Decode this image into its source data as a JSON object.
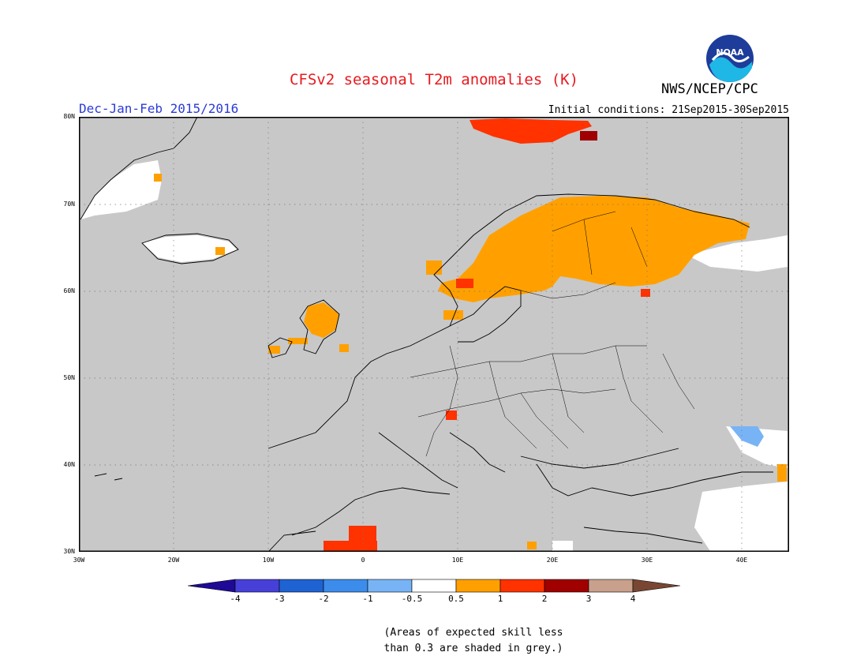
{
  "header": {
    "title": "CFSv2 seasonal T2m anomalies (K)",
    "agency": "NWS/NCEP/CPC",
    "period": "Dec-Jan-Feb 2015/2016",
    "initial_conditions": "Initial conditions: 21Sep2015-30Sep2015",
    "logo_text": "NOAA"
  },
  "map": {
    "lat_labels": [
      "80N",
      "70N",
      "60N",
      "50N",
      "40N",
      "30N"
    ],
    "lon_labels": [
      "30W",
      "20W",
      "10W",
      "0",
      "10E",
      "20E",
      "30E",
      "40E"
    ],
    "grey_color": "#c8c8c8"
  },
  "legend": {
    "ticks": [
      "-4",
      "-3",
      "-2",
      "-1",
      "-0.5",
      "0.5",
      "1",
      "2",
      "3",
      "4"
    ],
    "colors": [
      "#1e0a96",
      "#4640d8",
      "#1f63d2",
      "#3c8ceb",
      "#78b4f5",
      "#ffffff",
      "#ffa000",
      "#ff3200",
      "#a00000",
      "#c8a08c",
      "#784632"
    ]
  },
  "note": {
    "line1": "(Areas of expected skill less",
    "line2": "than 0.3 are shaded in grey.)"
  }
}
